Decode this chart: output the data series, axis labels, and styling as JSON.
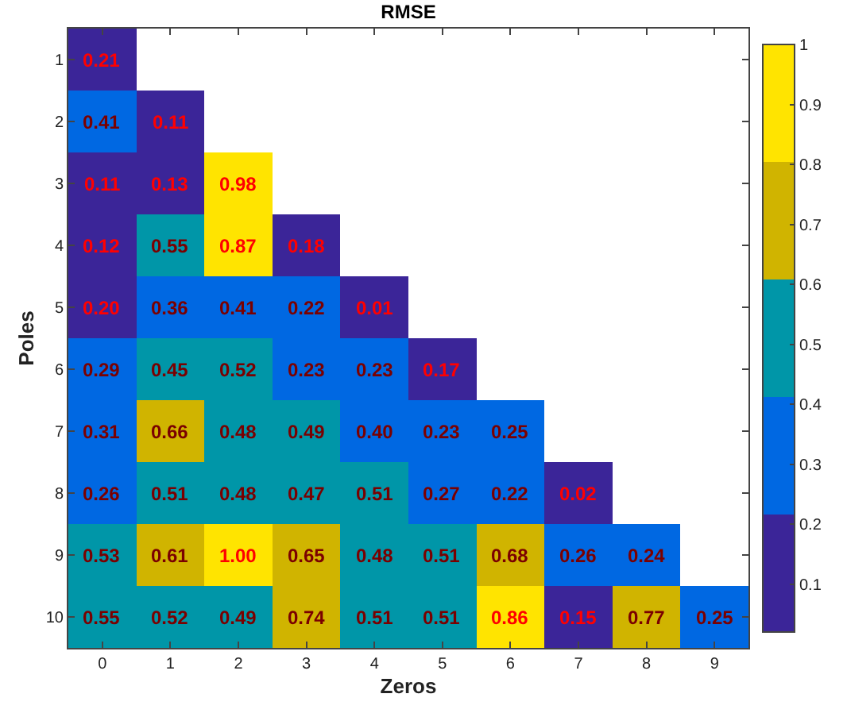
{
  "chart_data": {
    "type": "heatmap",
    "title": "RMSE",
    "xlabel": "Zeros",
    "ylabel": "Poles",
    "categories": [
      "0",
      "1",
      "2",
      "3",
      "4",
      "5",
      "6",
      "7",
      "8",
      "9"
    ],
    "y_categories": [
      "1",
      "2",
      "3",
      "4",
      "5",
      "6",
      "7",
      "8",
      "9",
      "10"
    ],
    "cells": [
      [
        0.21,
        null,
        null,
        null,
        null,
        null,
        null,
        null,
        null,
        null
      ],
      [
        0.41,
        0.11,
        null,
        null,
        null,
        null,
        null,
        null,
        null,
        null
      ],
      [
        0.11,
        0.13,
        0.98,
        null,
        null,
        null,
        null,
        null,
        null,
        null
      ],
      [
        0.12,
        0.55,
        0.87,
        0.18,
        null,
        null,
        null,
        null,
        null,
        null
      ],
      [
        0.2,
        0.36,
        0.41,
        0.22,
        0.01,
        null,
        null,
        null,
        null,
        null
      ],
      [
        0.29,
        0.45,
        0.52,
        0.23,
        0.23,
        0.17,
        null,
        null,
        null,
        null
      ],
      [
        0.31,
        0.66,
        0.48,
        0.49,
        0.4,
        0.23,
        0.25,
        null,
        null,
        null
      ],
      [
        0.26,
        0.51,
        0.48,
        0.47,
        0.51,
        0.27,
        0.22,
        0.02,
        null,
        null
      ],
      [
        0.53,
        0.61,
        1.0,
        0.65,
        0.48,
        0.51,
        0.68,
        0.26,
        0.24,
        null
      ],
      [
        0.55,
        0.52,
        0.49,
        0.74,
        0.51,
        0.51,
        0.86,
        0.15,
        0.77,
        0.25
      ]
    ],
    "cell_labels": [
      [
        "0.21",
        null,
        null,
        null,
        null,
        null,
        null,
        null,
        null,
        null
      ],
      [
        "0.41",
        "0.11",
        null,
        null,
        null,
        null,
        null,
        null,
        null,
        null
      ],
      [
        "0.11",
        "0.13",
        "0.98",
        null,
        null,
        null,
        null,
        null,
        null,
        null
      ],
      [
        "0.12",
        "0.55",
        "0.87",
        "0.18",
        null,
        null,
        null,
        null,
        null,
        null
      ],
      [
        "0.20",
        "0.36",
        "0.41",
        "0.22",
        "0.01",
        null,
        null,
        null,
        null,
        null
      ],
      [
        "0.29",
        "0.45",
        "0.52",
        "0.23",
        "0.23",
        "0.17",
        null,
        null,
        null,
        null
      ],
      [
        "0.31",
        "0.66",
        "0.48",
        "0.49",
        "0.40",
        "0.23",
        "0.25",
        null,
        null,
        null
      ],
      [
        "0.26",
        "0.51",
        "0.48",
        "0.47",
        "0.51",
        "0.27",
        "0.22",
        "0.02",
        null,
        null
      ],
      [
        "0.53",
        "0.61",
        "1.00",
        "0.65",
        "0.48",
        "0.51",
        "0.68",
        "0.26",
        "0.24",
        null
      ],
      [
        "0.55",
        "0.52",
        "0.49",
        "0.74",
        "0.51",
        "0.51",
        "0.86",
        "0.15",
        "0.77",
        "0.25"
      ]
    ],
    "colors": [
      "#3b2598",
      "#0068e2",
      "#0096a8",
      "#d0b400",
      "#ffe400"
    ],
    "clim": [
      0.02,
      1
    ],
    "cticks": [
      0.1,
      0.2,
      0.3,
      0.4,
      0.5,
      0.6,
      0.7,
      0.8,
      0.9,
      1
    ]
  }
}
